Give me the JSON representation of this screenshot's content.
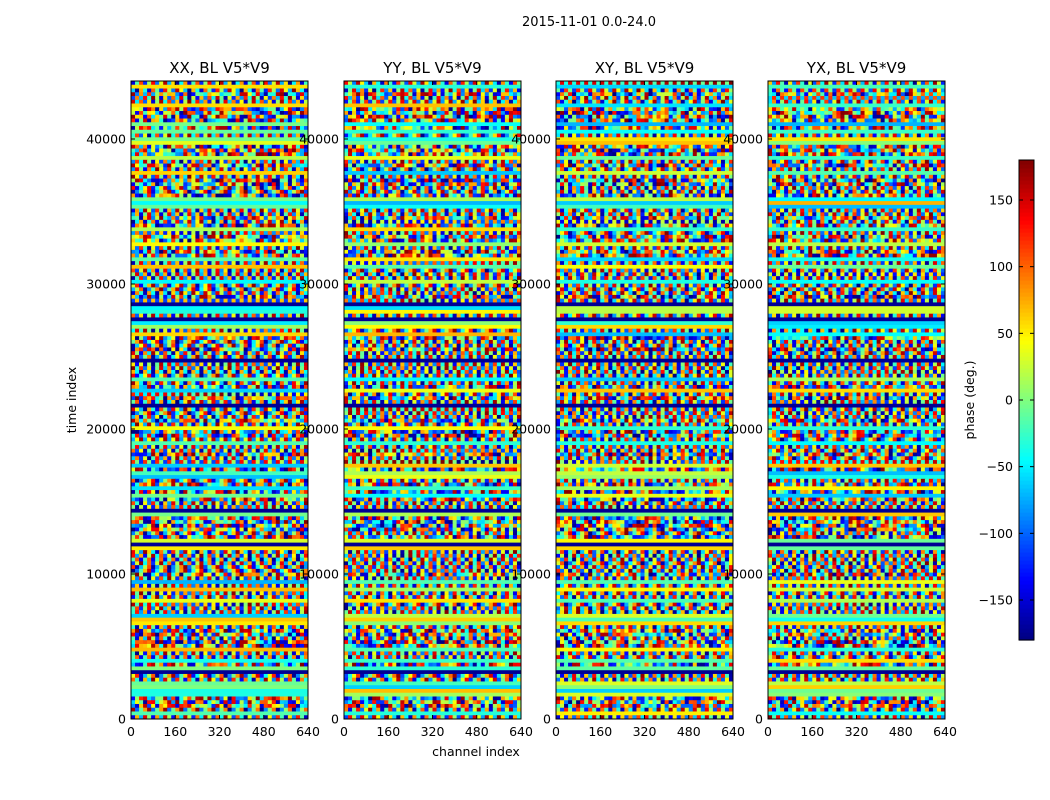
{
  "figure": {
    "suptitle": "2015-11-01 0.0-24.0",
    "ylabel": "time index",
    "xlabel": "channel index"
  },
  "chart_data": {
    "type": "heatmap",
    "panels": [
      {
        "title": "XX, BL V5*V9",
        "show_xlabel": false,
        "show_ylabel": true
      },
      {
        "title": "YY, BL V5*V9",
        "show_xlabel": true,
        "show_ylabel": false
      },
      {
        "title": "XY, BL V5*V9",
        "show_xlabel": false,
        "show_ylabel": false
      },
      {
        "title": "YX, BL V5*V9",
        "show_xlabel": false,
        "show_ylabel": false
      }
    ],
    "x_range": [
      0,
      640
    ],
    "x_ticks": [
      "0",
      "160",
      "320",
      "480",
      "640"
    ],
    "x_tick_values": [
      0,
      160,
      320,
      480,
      640
    ],
    "y_range": [
      0,
      44000
    ],
    "y_ticks": [
      "0",
      "10000",
      "20000",
      "30000",
      "40000"
    ],
    "y_tick_values": [
      0,
      10000,
      20000,
      30000,
      40000
    ],
    "value_range": [
      -180,
      180
    ],
    "colormap": "jet",
    "colorbar": {
      "label": "phase (deg.)",
      "ticks": [
        "−150",
        "−100",
        "−50",
        "0",
        "50",
        "100",
        "150"
      ],
      "tick_values": [
        -150,
        -100,
        -50,
        0,
        50,
        100,
        150
      ]
    }
  }
}
